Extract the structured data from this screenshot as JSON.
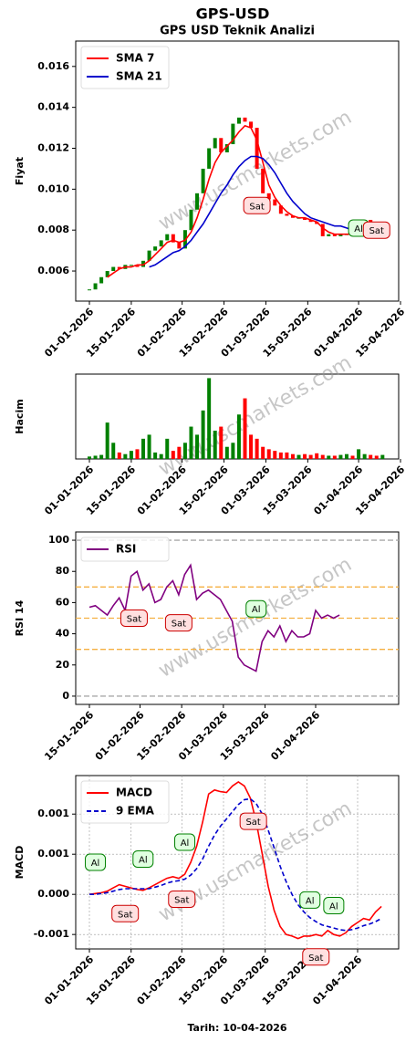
{
  "title": "GPS-USD",
  "footer": "Tarih: 10-04-2026",
  "watermark": "www.uscmarkets.com",
  "chart_data": [
    {
      "type": "candlestick",
      "title": "GPS USD Teknik Analizi",
      "ylabel": "Fiyat",
      "up_color": "#008000",
      "down_color": "#ff0000",
      "legend": "upper left",
      "x": [
        "01-01-2026",
        "03-01-2026",
        "05-01-2026",
        "07-01-2026",
        "09-01-2026",
        "11-01-2026",
        "13-01-2026",
        "15-01-2026",
        "17-01-2026",
        "19-01-2026",
        "21-01-2026",
        "23-01-2026",
        "25-01-2026",
        "27-01-2026",
        "29-01-2026",
        "31-01-2026",
        "02-02-2026",
        "04-02-2026",
        "06-02-2026",
        "08-02-2026",
        "10-02-2026",
        "12-02-2026",
        "14-02-2026",
        "16-02-2026",
        "18-02-2026",
        "20-02-2026",
        "22-02-2026",
        "24-02-2026",
        "26-02-2026",
        "28-02-2026",
        "02-03-2026",
        "04-03-2026",
        "06-03-2026",
        "08-03-2026",
        "10-03-2026",
        "12-03-2026",
        "14-03-2026",
        "16-03-2026",
        "18-03-2026",
        "20-03-2026",
        "22-03-2026",
        "24-03-2026",
        "26-03-2026",
        "28-03-2026",
        "30-03-2026",
        "01-04-2026",
        "03-04-2026",
        "05-04-2026",
        "07-04-2026",
        "09-04-2026"
      ],
      "close": [
        0.0051,
        0.0054,
        0.0057,
        0.006,
        0.0062,
        0.0061,
        0.0063,
        0.0063,
        0.0062,
        0.0065,
        0.007,
        0.0072,
        0.0075,
        0.0078,
        0.0074,
        0.0071,
        0.008,
        0.009,
        0.0098,
        0.011,
        0.012,
        0.0125,
        0.0118,
        0.0122,
        0.0132,
        0.0135,
        0.0133,
        0.013,
        0.011,
        0.0098,
        0.0095,
        0.0092,
        0.0088,
        0.0087,
        0.0086,
        0.0086,
        0.0085,
        0.0084,
        0.0083,
        0.0077,
        0.0078,
        0.0077,
        0.0078,
        0.0078,
        0.0077,
        0.008,
        0.0085,
        0.0078,
        0.0076,
        0.0077
      ],
      "series": [
        {
          "name": "SMA 7",
          "color": "#ff0000",
          "values": [
            null,
            null,
            null,
            0.0057,
            0.0059,
            0.0061,
            0.0062,
            0.0062,
            0.0063,
            0.0063,
            0.0065,
            0.0068,
            0.0071,
            0.0074,
            0.0075,
            0.0074,
            0.0075,
            0.0079,
            0.0086,
            0.0095,
            0.0105,
            0.0113,
            0.0118,
            0.0121,
            0.0124,
            0.0128,
            0.0131,
            0.013,
            0.0124,
            0.0113,
            0.0102,
            0.0096,
            0.0092,
            0.0089,
            0.0087,
            0.0086,
            0.0086,
            0.0085,
            0.0084,
            0.0081,
            0.0079,
            0.0078,
            0.0078,
            0.0078,
            0.0078,
            0.0078,
            0.008,
            0.008,
            0.0079,
            0.0078
          ]
        },
        {
          "name": "SMA 21",
          "color": "#0000cc",
          "values": [
            null,
            null,
            null,
            null,
            null,
            null,
            null,
            null,
            null,
            null,
            0.0062,
            0.0063,
            0.0065,
            0.0067,
            0.0069,
            0.007,
            0.0072,
            0.0075,
            0.0079,
            0.0083,
            0.0088,
            0.0093,
            0.0098,
            0.0102,
            0.0107,
            0.0111,
            0.0114,
            0.0116,
            0.0116,
            0.0115,
            0.0112,
            0.0108,
            0.0103,
            0.0098,
            0.0094,
            0.0091,
            0.0088,
            0.0086,
            0.0085,
            0.0084,
            0.0083,
            0.0082,
            0.0082,
            0.0081,
            0.008,
            0.0079,
            0.0079,
            0.0079,
            0.0079,
            0.0079
          ]
        }
      ],
      "ylim": [
        0.00453,
        0.01724
      ],
      "yticks": [
        0.006,
        0.008,
        {
          "value": 0.01,
          "label": "0.010"
        },
        0.012,
        0.014,
        0.016
      ],
      "xticks": [
        "01-01-2026",
        "15-01-2026",
        "01-02-2026",
        "15-02-2026",
        "01-03-2026",
        "15-03-2026",
        "01-04-2026",
        "15-04-2026"
      ],
      "annotations": [
        {
          "text": "Sat",
          "x": "26-02-2026",
          "y": 0.0092,
          "color": "#cc0000",
          "fill": "#ffe0e0"
        },
        {
          "text": "Al",
          "x": "01-04-2026",
          "y": 0.0081,
          "color": "#008000",
          "fill": "#e0ffe0"
        },
        {
          "text": "Sat",
          "x": "07-04-2026",
          "y": 0.008,
          "color": "#cc0000",
          "fill": "#ffe0e0"
        }
      ]
    },
    {
      "type": "bar",
      "ylabel": "Hacim",
      "up_color": "#008000",
      "down_color": "#ff0000",
      "x": [
        "01-01-2026",
        "03-01-2026",
        "05-01-2026",
        "07-01-2026",
        "09-01-2026",
        "11-01-2026",
        "13-01-2026",
        "15-01-2026",
        "17-01-2026",
        "19-01-2026",
        "21-01-2026",
        "23-01-2026",
        "25-01-2026",
        "27-01-2026",
        "29-01-2026",
        "31-01-2026",
        "02-02-2026",
        "04-02-2026",
        "06-02-2026",
        "08-02-2026",
        "10-02-2026",
        "12-02-2026",
        "14-02-2026",
        "16-02-2026",
        "18-02-2026",
        "20-02-2026",
        "22-02-2026",
        "24-02-2026",
        "26-02-2026",
        "28-02-2026",
        "02-03-2026",
        "04-03-2026",
        "06-03-2026",
        "08-03-2026",
        "10-03-2026",
        "12-03-2026",
        "14-03-2026",
        "16-03-2026",
        "18-03-2026",
        "20-03-2026",
        "22-03-2026",
        "24-03-2026",
        "26-03-2026",
        "28-03-2026",
        "30-03-2026",
        "01-04-2026",
        "03-04-2026",
        "05-04-2026",
        "07-04-2026",
        "09-04-2026"
      ],
      "values": [
        3,
        4,
        5,
        45,
        20,
        8,
        6,
        10,
        12,
        25,
        30,
        8,
        6,
        25,
        10,
        15,
        20,
        40,
        30,
        60,
        100,
        35,
        40,
        15,
        20,
        55,
        75,
        30,
        25,
        15,
        12,
        10,
        8,
        8,
        6,
        5,
        6,
        5,
        7,
        5,
        4,
        4,
        5,
        6,
        4,
        12,
        6,
        5,
        4,
        5
      ],
      "ylim": [
        0,
        105
      ],
      "xticks": [
        "01-01-2026",
        "15-01-2026",
        "01-02-2026",
        "15-02-2026",
        "01-03-2026",
        "15-03-2026",
        "01-04-2026",
        "15-04-2026"
      ]
    },
    {
      "type": "line",
      "ylabel": "RSI 14",
      "legend": "upper left",
      "x": [
        "01-01-2026",
        "03-01-2026",
        "05-01-2026",
        "07-01-2026",
        "09-01-2026",
        "11-01-2026",
        "13-01-2026",
        "15-01-2026",
        "17-01-2026",
        "19-01-2026",
        "21-01-2026",
        "23-01-2026",
        "25-01-2026",
        "27-01-2026",
        "29-01-2026",
        "31-01-2026",
        "02-02-2026",
        "04-02-2026",
        "06-02-2026",
        "08-02-2026",
        "10-02-2026",
        "12-02-2026",
        "14-02-2026",
        "16-02-2026",
        "18-02-2026",
        "20-02-2026",
        "22-02-2026",
        "24-02-2026",
        "26-02-2026",
        "28-02-2026",
        "02-03-2026",
        "04-03-2026",
        "06-03-2026",
        "08-03-2026",
        "10-03-2026",
        "12-03-2026",
        "14-03-2026",
        "16-03-2026",
        "18-03-2026",
        "20-03-2026",
        "22-03-2026",
        "24-03-2026",
        "26-03-2026",
        "28-03-2026",
        "30-03-2026",
        "01-04-2026",
        "03-04-2026",
        "05-04-2026",
        "07-04-2026",
        "09-04-2026"
      ],
      "series": [
        {
          "name": "RSI",
          "color": "#800080",
          "values": [
            null,
            null,
            null,
            null,
            null,
            null,
            null,
            57,
            58,
            55,
            52,
            58,
            63,
            55,
            77,
            80,
            68,
            72,
            60,
            62,
            70,
            74,
            65,
            78,
            84,
            62,
            66,
            68,
            65,
            62,
            55,
            48,
            25,
            20,
            18,
            16,
            35,
            42,
            38,
            45,
            35,
            42,
            38,
            38,
            40,
            55,
            50,
            52,
            50,
            52
          ]
        }
      ],
      "hlines": [
        {
          "value": 0,
          "color": "#aaaaaa"
        },
        {
          "value": 100,
          "color": "#aaaaaa"
        },
        {
          "value": 30,
          "color": "#f5b041"
        },
        {
          "value": 50,
          "color": "#f5b041"
        },
        {
          "value": 70,
          "color": "#f5b041"
        }
      ],
      "ylim": [
        -5.3,
        105.3
      ],
      "yticks": [
        0,
        20,
        40,
        60,
        80,
        100
      ],
      "xticks": [
        "15-01-2026",
        "01-02-2026",
        "15-02-2026",
        "01-03-2026",
        "15-03-2026",
        "01-04-2026"
      ],
      "annotations": [
        {
          "text": "Sat",
          "x": "30-01-2026",
          "y": 50,
          "color": "#cc0000",
          "fill": "#ffe0e0"
        },
        {
          "text": "Sat",
          "x": "14-02-2026",
          "y": 47,
          "color": "#cc0000",
          "fill": "#ffe0e0"
        },
        {
          "text": "Al",
          "x": "12-03-2026",
          "y": 56,
          "color": "#008000",
          "fill": "#e0ffe0"
        }
      ]
    },
    {
      "type": "line",
      "ylabel": "MACD",
      "legend": "upper left",
      "grid": true,
      "x": [
        "01-01-2026",
        "03-01-2026",
        "05-01-2026",
        "07-01-2026",
        "09-01-2026",
        "11-01-2026",
        "13-01-2026",
        "15-01-2026",
        "17-01-2026",
        "19-01-2026",
        "21-01-2026",
        "23-01-2026",
        "25-01-2026",
        "27-01-2026",
        "29-01-2026",
        "31-01-2026",
        "02-02-2026",
        "04-02-2026",
        "06-02-2026",
        "08-02-2026",
        "10-02-2026",
        "12-02-2026",
        "14-02-2026",
        "16-02-2026",
        "18-02-2026",
        "20-02-2026",
        "22-02-2026",
        "24-02-2026",
        "26-02-2026",
        "28-02-2026",
        "02-03-2026",
        "04-03-2026",
        "06-03-2026",
        "08-03-2026",
        "10-03-2026",
        "12-03-2026",
        "14-03-2026",
        "16-03-2026",
        "18-03-2026",
        "20-03-2026",
        "22-03-2026",
        "24-03-2026",
        "26-03-2026",
        "28-03-2026",
        "30-03-2026",
        "01-04-2026",
        "03-04-2026",
        "05-04-2026",
        "07-04-2026",
        "09-04-2026"
      ],
      "series": [
        {
          "name": "MACD",
          "color": "#ff0000",
          "values": [
            0,
            1e-05,
            2e-05,
            4e-05,
            8e-05,
            0.00012,
            0.0001,
            8e-05,
            6e-05,
            5e-05,
            8e-05,
            0.00012,
            0.00016,
            0.0002,
            0.00022,
            0.0002,
            0.00025,
            0.0004,
            0.0006,
            0.0009,
            0.00125,
            0.0013,
            0.00128,
            0.00127,
            0.00135,
            0.0014,
            0.00135,
            0.0012,
            0.0009,
            0.0005,
            0.0001,
            -0.0002,
            -0.0004,
            -0.0005,
            -0.00052,
            -0.00055,
            -0.00052,
            -0.00052,
            -0.0005,
            -0.00052,
            -0.00045,
            -0.0005,
            -0.00052,
            -0.00048,
            -0.0004,
            -0.00035,
            -0.0003,
            -0.00032,
            -0.00022,
            -0.00015
          ]
        },
        {
          "name": "9 EMA",
          "color": "#0000cc",
          "dashed": true,
          "values": [
            0,
            0,
            1e-05,
            2e-05,
            4e-05,
            6e-05,
            7e-05,
            7e-05,
            7e-05,
            7e-05,
            7e-05,
            9e-05,
            0.00011,
            0.00014,
            0.00016,
            0.00017,
            0.00019,
            0.00024,
            0.00032,
            0.00044,
            0.0006,
            0.00074,
            0.00085,
            0.00094,
            0.00103,
            0.00112,
            0.00118,
            0.00119,
            0.00113,
            0.001,
            0.0008,
            0.00058,
            0.00035,
            0.00016,
            0,
            -0.00013,
            -0.00022,
            -0.00029,
            -0.00034,
            -0.00038,
            -0.0004,
            -0.00042,
            -0.00044,
            -0.00045,
            -0.00044,
            -0.00042,
            -0.00039,
            -0.00037,
            -0.00034,
            -0.0003
          ]
        }
      ],
      "ylim": [
        -0.00068,
        0.00148
      ],
      "yticks": [
        {
          "value": -0.0005,
          "label": "-0.001"
        },
        {
          "value": 0,
          "label": "0.000"
        },
        {
          "value": 0.0005,
          "label": "0.001"
        },
        0.001
      ],
      "xticks": [
        "01-01-2026",
        "15-01-2026",
        "01-02-2026",
        "15-02-2026",
        "01-03-2026",
        "15-03-2026",
        "01-04-2026"
      ],
      "annotations": [
        {
          "text": "Al",
          "x": "03-01-2026",
          "y": 0.0004,
          "color": "#008000",
          "fill": "#e0ffe0"
        },
        {
          "text": "Sat",
          "x": "13-01-2026",
          "y": -0.00024,
          "color": "#cc0000",
          "fill": "#ffe0e0"
        },
        {
          "text": "Al",
          "x": "19-01-2026",
          "y": 0.00044,
          "color": "#008000",
          "fill": "#e0ffe0"
        },
        {
          "text": "Al",
          "x": "02-02-2026",
          "y": 0.00065,
          "color": "#008000",
          "fill": "#e0ffe0"
        },
        {
          "text": "Sat",
          "x": "01-02-2026",
          "y": -6e-05,
          "color": "#cc0000",
          "fill": "#ffe0e0"
        },
        {
          "text": "Sat",
          "x": "25-02-2026",
          "y": 0.00091,
          "color": "#cc0000",
          "fill": "#ffe0e0"
        },
        {
          "text": "Al",
          "x": "16-03-2026",
          "y": -7e-05,
          "color": "#008000",
          "fill": "#e0ffe0"
        },
        {
          "text": "Al",
          "x": "24-03-2026",
          "y": -0.00014,
          "color": "#008000",
          "fill": "#e0ffe0"
        },
        {
          "text": "Sat",
          "x": "18-03-2026",
          "y": -0.00078,
          "color": "#cc0000",
          "fill": "#ffe0e0"
        }
      ]
    }
  ]
}
